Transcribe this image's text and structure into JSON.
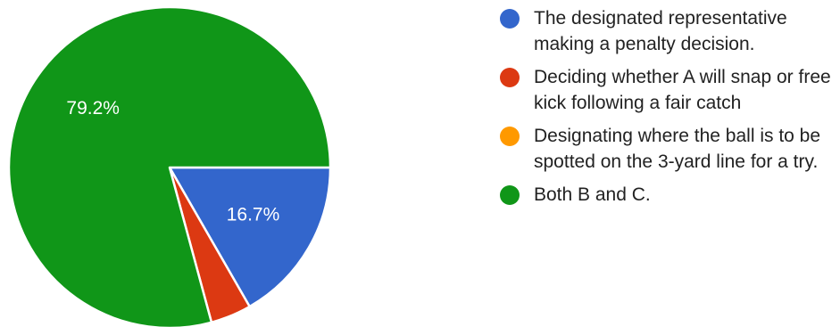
{
  "chart_data": {
    "type": "pie",
    "categories": [
      "The designated representative making a penalty decision.",
      "Deciding whether A will snap or free kick following a fair catch",
      "Designating where the ball is to be spotted on the 3-yard line for a try.",
      "Both B and C."
    ],
    "values": [
      16.7,
      4.1,
      0,
      79.2
    ],
    "colors": [
      "#3366cc",
      "#dc3912",
      "#ff9900",
      "#109618"
    ],
    "slice_labels": [
      "16.7%",
      "",
      "",
      "79.2%"
    ],
    "legend_position": "right"
  }
}
